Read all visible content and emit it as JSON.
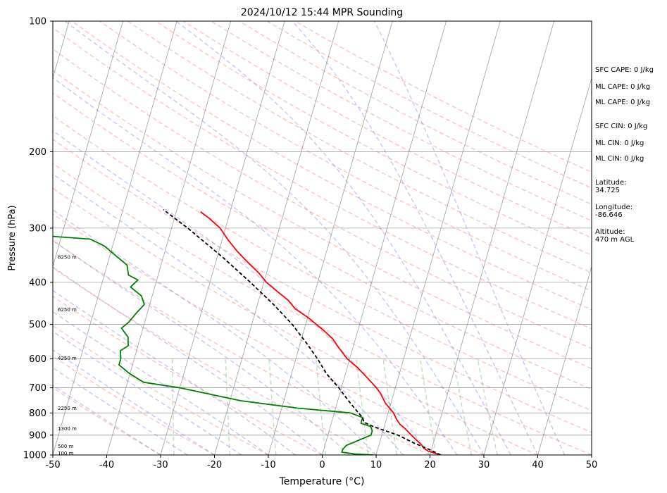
{
  "chart_data": {
    "type": "skew-t",
    "title": "2024/10/12 15:44 MPR Sounding",
    "xlabel": "Temperature (°C)",
    "ylabel": "Pressure (hPa)",
    "xlim": [
      -50,
      50
    ],
    "ylim": [
      1000,
      100
    ],
    "y_scale": "log",
    "grid": true,
    "x_ticks": [
      -50,
      -40,
      -30,
      -20,
      -10,
      0,
      10,
      20,
      30,
      40,
      50
    ],
    "y_ticks": [
      100,
      200,
      300,
      400,
      500,
      600,
      700,
      800,
      900,
      1000
    ],
    "height_labels": [
      {
        "text": "100 m",
        "p": 990
      },
      {
        "text": "500 m",
        "p": 955
      },
      {
        "text": "1300 m",
        "p": 870
      },
      {
        "text": "2250 m",
        "p": 780
      },
      {
        "text": "4250 m",
        "p": 598
      },
      {
        "text": "6250 m",
        "p": 462
      },
      {
        "text": "8250 m",
        "p": 350
      }
    ],
    "series": [
      {
        "color": "#ff0000",
        "points": [
          {
            "p": 1000,
            "t": 22.0
          },
          {
            "p": 980,
            "t": 19.5
          },
          {
            "p": 965,
            "t": 18.5
          },
          {
            "p": 950,
            "t": 18.0
          },
          {
            "p": 930,
            "t": 17.0
          },
          {
            "p": 900,
            "t": 15.5
          },
          {
            "p": 870,
            "t": 14.0
          },
          {
            "p": 850,
            "t": 12.8
          },
          {
            "p": 830,
            "t": 12.0
          },
          {
            "p": 800,
            "t": 11.0
          },
          {
            "p": 760,
            "t": 9.0
          },
          {
            "p": 720,
            "t": 7.5
          },
          {
            "p": 700,
            "t": 6.5
          },
          {
            "p": 660,
            "t": 4.0
          },
          {
            "p": 630,
            "t": 2.0
          },
          {
            "p": 600,
            "t": -0.5
          },
          {
            "p": 560,
            "t": -3.0
          },
          {
            "p": 540,
            "t": -4.2
          },
          {
            "p": 520,
            "t": -6.0
          },
          {
            "p": 500,
            "t": -8.0
          },
          {
            "p": 480,
            "t": -10.2
          },
          {
            "p": 460,
            "t": -12.8
          },
          {
            "p": 440,
            "t": -14.5
          },
          {
            "p": 420,
            "t": -17.0
          },
          {
            "p": 400,
            "t": -19.5
          },
          {
            "p": 380,
            "t": -21.5
          },
          {
            "p": 360,
            "t": -24.0
          },
          {
            "p": 340,
            "t": -26.5
          },
          {
            "p": 320,
            "t": -28.8
          },
          {
            "p": 300,
            "t": -31.0
          },
          {
            "p": 285,
            "t": -33.5
          },
          {
            "p": 275,
            "t": -35.5
          }
        ]
      },
      {
        "color": "#008000",
        "points": [
          {
            "p": 1000,
            "t": 9.5
          },
          {
            "p": 995,
            "t": 6.0
          },
          {
            "p": 985,
            "t": 3.5
          },
          {
            "p": 970,
            "t": 3.5
          },
          {
            "p": 950,
            "t": 4.0
          },
          {
            "p": 900,
            "t": 8.0
          },
          {
            "p": 880,
            "t": 8.0
          },
          {
            "p": 860,
            "t": 7.5
          },
          {
            "p": 845,
            "t": 5.5
          },
          {
            "p": 820,
            "t": 5.5
          },
          {
            "p": 800,
            "t": 3.0
          },
          {
            "p": 780,
            "t": -7.0
          },
          {
            "p": 750,
            "t": -18.0
          },
          {
            "p": 700,
            "t": -30.0
          },
          {
            "p": 680,
            "t": -37.0
          },
          {
            "p": 650,
            "t": -40.0
          },
          {
            "p": 620,
            "t": -42.5
          },
          {
            "p": 600,
            "t": -42.5
          },
          {
            "p": 575,
            "t": -43.0
          },
          {
            "p": 560,
            "t": -41.8
          },
          {
            "p": 535,
            "t": -42.3
          },
          {
            "p": 510,
            "t": -44.0
          },
          {
            "p": 495,
            "t": -43.0
          },
          {
            "p": 470,
            "t": -42.0
          },
          {
            "p": 450,
            "t": -41.0
          },
          {
            "p": 430,
            "t": -42.0
          },
          {
            "p": 410,
            "t": -44.5
          },
          {
            "p": 395,
            "t": -43.5
          },
          {
            "p": 385,
            "t": -45.5
          },
          {
            "p": 365,
            "t": -46.3
          },
          {
            "p": 350,
            "t": -48.5
          },
          {
            "p": 330,
            "t": -51.5
          },
          {
            "p": 318,
            "t": -54.5
          },
          {
            "p": 310,
            "t": -67.0
          },
          {
            "p": 305,
            "t": -77.0
          },
          {
            "p": 300,
            "t": -85.0
          }
        ]
      },
      {
        "color": "#000000",
        "dashed": true,
        "points": [
          {
            "p": 1000,
            "t": 22.0
          },
          {
            "p": 970,
            "t": 19.5
          },
          {
            "p": 940,
            "t": 16.5
          },
          {
            "p": 900,
            "t": 13.0
          },
          {
            "p": 880,
            "t": 10.5
          },
          {
            "p": 860,
            "t": 8.0
          },
          {
            "p": 840,
            "t": 6.0
          },
          {
            "p": 820,
            "t": 5.5
          },
          {
            "p": 800,
            "t": 4.5
          },
          {
            "p": 760,
            "t": 2.5
          },
          {
            "p": 720,
            "t": 0.5
          },
          {
            "p": 700,
            "t": -0.5
          },
          {
            "p": 650,
            "t": -3.5
          },
          {
            "p": 600,
            "t": -6.0
          },
          {
            "p": 550,
            "t": -9.0
          },
          {
            "p": 500,
            "t": -12.5
          },
          {
            "p": 450,
            "t": -17.0
          },
          {
            "p": 400,
            "t": -22.5
          },
          {
            "p": 350,
            "t": -29.0
          },
          {
            "p": 300,
            "t": -37.0
          },
          {
            "p": 272,
            "t": -42.5
          }
        ]
      }
    ]
  },
  "info": [
    {
      "text": "SFC CAPE: 0 J/kg"
    },
    {
      "text": "ML CAPE: 0 J/kg"
    },
    {
      "text": "ML CAPE: 0 J/kg"
    },
    {
      "text": "SFC CIN: 0 J/kg"
    },
    {
      "text": "ML CIN: 0 J/kg"
    },
    {
      "text": "ML CIN: 0 J/kg"
    },
    {
      "text": "Latitude:",
      "value": "34.725"
    },
    {
      "text": "Longitude:",
      "value": "-86.646"
    },
    {
      "text": "Altitude:",
      "value": "470 m AGL"
    }
  ]
}
